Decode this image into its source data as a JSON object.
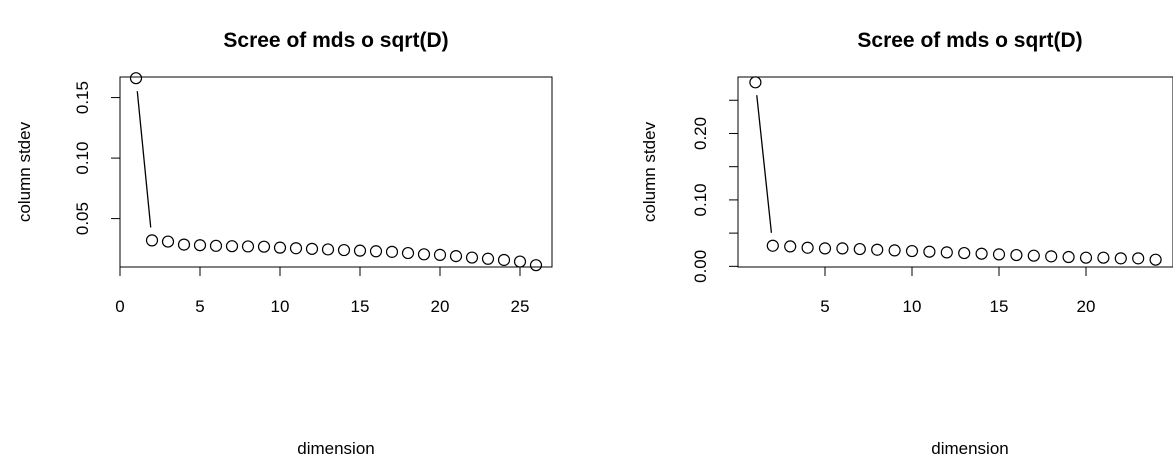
{
  "chart_data": [
    {
      "type": "scatter",
      "title": "Scree of mds o sqrt(D)",
      "xlabel": "dimension",
      "ylabel": "column stdev",
      "xlim": [
        0,
        27
      ],
      "ylim": [
        0.01,
        0.167
      ],
      "x_ticks": [
        0,
        5,
        10,
        15,
        20,
        25
      ],
      "y_ticks": [
        0.05,
        0.1,
        0.15
      ],
      "y_tick_labels": [
        "0.05",
        "0.10",
        "0.15"
      ],
      "grid": false,
      "connector": {
        "from_index": 0,
        "to_index": 1
      },
      "x": [
        1,
        2,
        3,
        4,
        5,
        6,
        7,
        8,
        9,
        10,
        11,
        12,
        13,
        14,
        15,
        16,
        17,
        18,
        19,
        20,
        21,
        22,
        23,
        24,
        25,
        26
      ],
      "y": [
        0.166,
        0.032,
        0.031,
        0.0285,
        0.028,
        0.0275,
        0.0272,
        0.027,
        0.0268,
        0.026,
        0.0255,
        0.025,
        0.0245,
        0.024,
        0.0235,
        0.023,
        0.0225,
        0.0215,
        0.0205,
        0.02,
        0.019,
        0.0178,
        0.0168,
        0.0158,
        0.0145,
        0.0115
      ]
    },
    {
      "type": "scatter",
      "title": "Scree of mds o sqrt(D)",
      "xlabel": "dimension",
      "ylabel": "column stdev",
      "xlim": [
        0,
        25
      ],
      "ylim": [
        -0.001,
        0.285
      ],
      "x_ticks": [
        5,
        10,
        15,
        20
      ],
      "y_ticks": [
        0.0,
        0.1,
        0.2
      ],
      "y_tick_labels": [
        "0.00",
        "0.10",
        "0.20"
      ],
      "y_minor_ticks": [
        0.05,
        0.15,
        0.25
      ],
      "grid": false,
      "connector": {
        "from_index": 0,
        "to_index": 1
      },
      "x": [
        1,
        2,
        3,
        4,
        5,
        6,
        7,
        8,
        9,
        10,
        11,
        12,
        13,
        14,
        15,
        16,
        17,
        18,
        19,
        20,
        21,
        22,
        23,
        24
      ],
      "y": [
        0.277,
        0.031,
        0.03,
        0.028,
        0.027,
        0.027,
        0.026,
        0.025,
        0.024,
        0.023,
        0.022,
        0.021,
        0.02,
        0.019,
        0.018,
        0.017,
        0.016,
        0.015,
        0.014,
        0.013,
        0.013,
        0.012,
        0.012,
        0.01
      ]
    }
  ]
}
